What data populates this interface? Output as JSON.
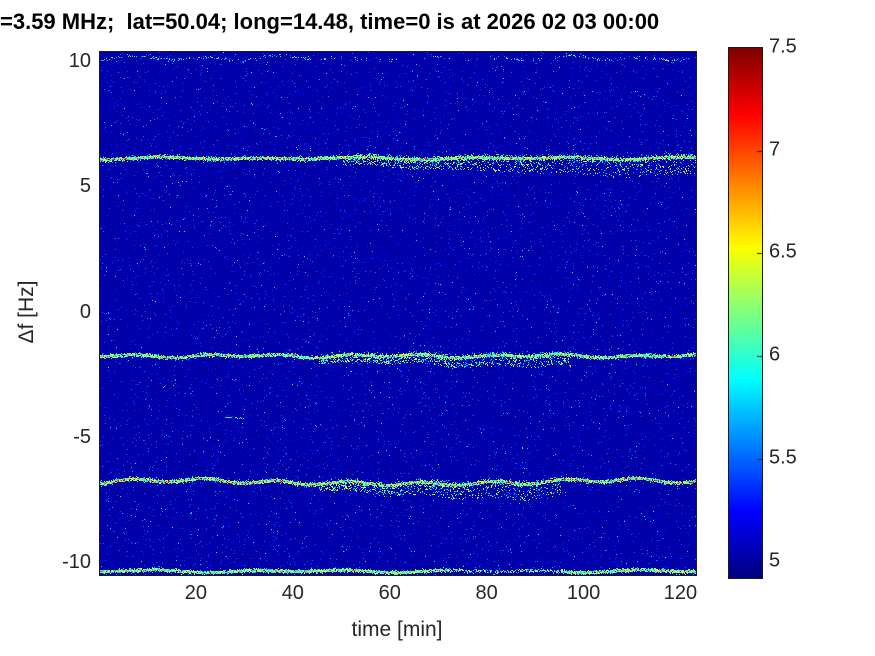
{
  "chart_data": {
    "type": "heatmap",
    "title": "=3.59 MHz;  lat=50.04; long=14.48, time=0 is at 2026 02 03 00:00",
    "xlabel": "time [min]",
    "ylabel": "Δf [Hz]",
    "xlim": [
      0,
      123
    ],
    "ylim": [
      -10.45,
      10.45
    ],
    "xticks": [
      20,
      40,
      60,
      80,
      100,
      120
    ],
    "yticks": [
      10,
      5,
      0,
      -5,
      -10
    ],
    "grid": false,
    "legend": null,
    "colormap": "jet",
    "background_level": 5.0,
    "colorbar": {
      "min": 4.92,
      "max": 7.5,
      "ticks": [
        7.5,
        7,
        6.5,
        6,
        5.5,
        5
      ],
      "position": "right"
    },
    "spectral_lines": [
      {
        "name": "upper-edge-trace",
        "df": 10.2,
        "strength": "faint",
        "wander_hz": 0.12
      },
      {
        "name": "upper-sideband",
        "df": 6.2,
        "strength": "strong",
        "wander_hz": 0.06,
        "diffuse_below": {
          "from_min": 50,
          "to_min": 123,
          "max_hz": 0.55
        }
      },
      {
        "name": "inner-lower-trace",
        "df": -1.7,
        "strength": "medium",
        "wander_hz": 0.08,
        "diffuse_below": {
          "from_min": 45,
          "to_min": 97,
          "max_hz": 0.3
        }
      },
      {
        "name": "lower-sideband",
        "df": -6.7,
        "strength": "strong-red",
        "wander_hz": 0.12,
        "diffuse_below": {
          "from_min": 45,
          "to_min": 95,
          "max_hz": 0.5
        },
        "dip": {
          "at_min": 63,
          "depth_hz": 0.16
        }
      },
      {
        "name": "bottom-edge-trace",
        "df": -10.3,
        "strength": "medium",
        "wander_hz": 0.06,
        "faint_span_min": [
          72,
          95
        ]
      }
    ],
    "isolated_blip": {
      "time_min": 26,
      "df": -4.15
    },
    "axis_color": "#262626",
    "title_color": "#000000",
    "background_color_low": "#0000ad",
    "background_color_hot": "#7f0000"
  }
}
